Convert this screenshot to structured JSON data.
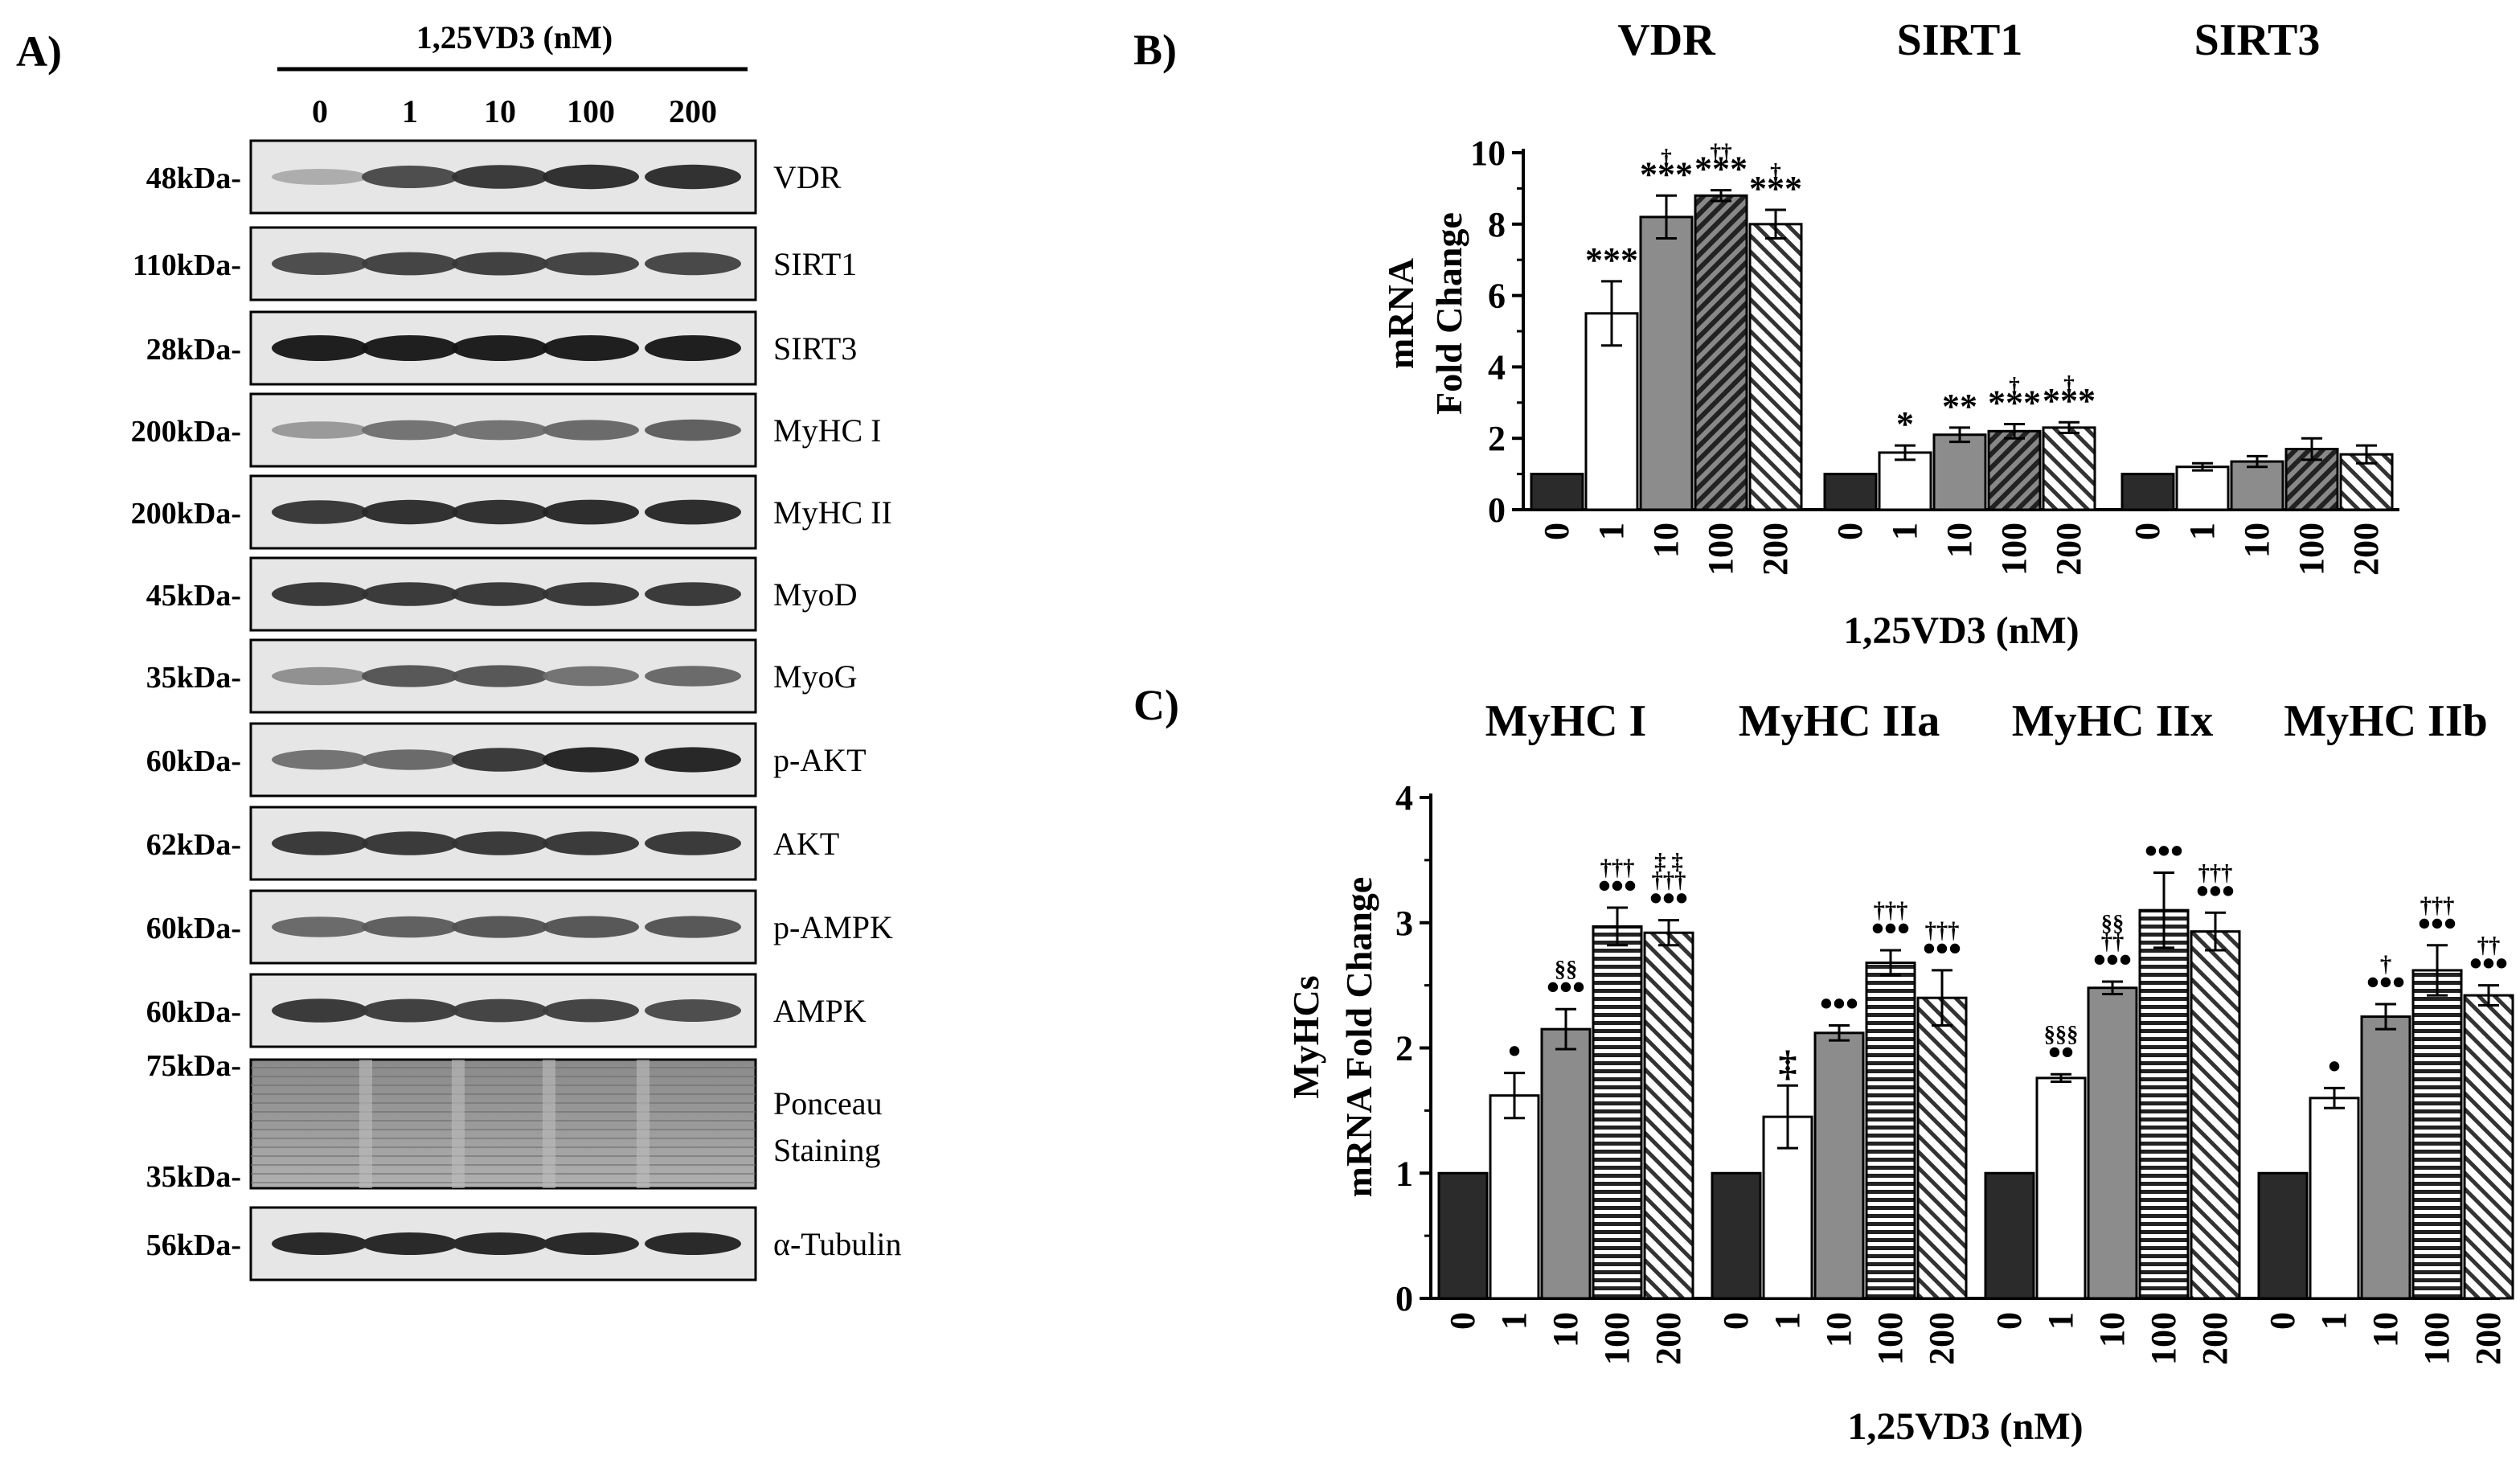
{
  "panel_labels": {
    "a": "A)",
    "b": "B)",
    "c": "C)"
  },
  "blot": {
    "treatment_label": "1,25VD3 (nM)",
    "lanes": [
      "0",
      "1",
      "10",
      "100",
      "200"
    ],
    "rows": [
      {
        "marker": "48kDa-",
        "protein": "VDR",
        "intensity": [
          0.25,
          0.75,
          0.85,
          0.9,
          0.9
        ]
      },
      {
        "marker": "110kDa-",
        "protein": "SIRT1",
        "intensity": [
          0.75,
          0.8,
          0.82,
          0.8,
          0.78
        ]
      },
      {
        "marker": "28kDa-",
        "protein": "SIRT3",
        "intensity": [
          1.0,
          1.0,
          1.0,
          1.0,
          1.0
        ]
      },
      {
        "marker": "200kDa-",
        "protein": "MyHC  I",
        "intensity": [
          0.35,
          0.55,
          0.55,
          0.6,
          0.65
        ]
      },
      {
        "marker": "200kDa-",
        "protein": "MyHC  II",
        "intensity": [
          0.85,
          0.9,
          0.9,
          0.92,
          0.92
        ]
      },
      {
        "marker": "45kDa-",
        "protein": "MyoD",
        "intensity": [
          0.85,
          0.85,
          0.85,
          0.85,
          0.85
        ]
      },
      {
        "marker": "35kDa-",
        "protein": "MyoG",
        "intensity": [
          0.4,
          0.7,
          0.7,
          0.55,
          0.6
        ]
      },
      {
        "marker": "60kDa-",
        "protein": "p-AKT",
        "intensity": [
          0.55,
          0.6,
          0.85,
          0.95,
          0.95
        ]
      },
      {
        "marker": "62kDa-",
        "protein": "AKT",
        "intensity": [
          0.85,
          0.85,
          0.85,
          0.85,
          0.85
        ]
      },
      {
        "marker": "60kDa-",
        "protein": "p-AMPK",
        "intensity": [
          0.6,
          0.65,
          0.7,
          0.7,
          0.7
        ]
      },
      {
        "marker": "60kDa-",
        "protein": "AMPK",
        "intensity": [
          0.85,
          0.82,
          0.8,
          0.8,
          0.75
        ]
      }
    ],
    "ponceau": {
      "marker_top": "75kDa-",
      "marker_bottom": "35kDa-",
      "label_line1": "Ponceau",
      "label_line2": "Staining"
    },
    "loading": {
      "marker": "56kDa-",
      "protein": "α-Tubulin"
    }
  },
  "chart_data": [
    {
      "type": "bar",
      "panel": "B)",
      "ylabel_line1": "mRNA",
      "ylabel_line2": "Fold Change",
      "xlabel": "1,25VD3 (nM)",
      "ylim": [
        0,
        10
      ],
      "yticks": [
        0,
        2,
        4,
        6,
        8,
        10
      ],
      "categories": [
        "0",
        "1",
        "10",
        "100",
        "200"
      ],
      "groups": [
        {
          "name": "VDR",
          "values": [
            1.0,
            5.5,
            8.2,
            8.8,
            8.0
          ],
          "errors": [
            0,
            0.9,
            0.6,
            0.15,
            0.4
          ],
          "annotations": [
            [
              "",
              ""
            ],
            [
              "***",
              ""
            ],
            [
              "***",
              "†"
            ],
            [
              "***",
              "††"
            ],
            [
              "***",
              "†"
            ]
          ]
        },
        {
          "name": "SIRT1",
          "values": [
            1.0,
            1.6,
            2.1,
            2.2,
            2.3
          ],
          "errors": [
            0,
            0.2,
            0.2,
            0.2,
            0.15
          ],
          "annotations": [
            [
              "",
              ""
            ],
            [
              "*",
              ""
            ],
            [
              "**",
              ""
            ],
            [
              "***",
              "†"
            ],
            [
              "***",
              "†"
            ]
          ]
        },
        {
          "name": "SIRT3",
          "values": [
            1.0,
            1.2,
            1.35,
            1.7,
            1.55
          ],
          "errors": [
            0,
            0.1,
            0.15,
            0.3,
            0.25
          ],
          "annotations": [
            [
              "",
              ""
            ],
            [
              "",
              ""
            ],
            [
              "",
              ""
            ],
            [
              "",
              ""
            ],
            [
              "",
              ""
            ]
          ]
        }
      ]
    },
    {
      "type": "bar",
      "panel": "C)",
      "ylabel_line1": "MyHCs",
      "ylabel_line2": "mRNA Fold Change",
      "xlabel": "1,25VD3 (nM)",
      "ylim": [
        0,
        4
      ],
      "yticks": [
        0,
        1,
        2,
        3,
        4
      ],
      "categories": [
        "0",
        "1",
        "10",
        "100",
        "200"
      ],
      "groups": [
        {
          "name": "MyHC I",
          "values": [
            1.0,
            1.62,
            2.15,
            2.97,
            2.92
          ],
          "errors": [
            0,
            0.18,
            0.16,
            0.15,
            0.1
          ],
          "annotations": [
            [
              "",
              "",
              ""
            ],
            [
              "•",
              "",
              ""
            ],
            [
              "•••",
              "§§",
              ""
            ],
            [
              "•••",
              "†††",
              ""
            ],
            [
              "•••",
              "†††",
              "‡ ‡"
            ]
          ]
        },
        {
          "name": "MyHC IIa",
          "values": [
            1.0,
            1.45,
            2.12,
            2.68,
            2.4
          ],
          "errors": [
            0,
            0.25,
            0.06,
            0.1,
            0.22
          ],
          "annotations": [
            [
              "",
              "",
              ""
            ],
            [
              "‡",
              "",
              ""
            ],
            [
              "•••",
              "",
              ""
            ],
            [
              "•••",
              "†††",
              ""
            ],
            [
              "•••",
              "†††",
              ""
            ]
          ]
        },
        {
          "name": "MyHC IIx",
          "values": [
            1.0,
            1.76,
            2.48,
            3.1,
            2.93
          ],
          "errors": [
            0,
            0.03,
            0.05,
            0.3,
            0.15
          ],
          "annotations": [
            [
              "",
              "",
              ""
            ],
            [
              "••",
              "§§§",
              ""
            ],
            [
              "•••",
              "††",
              "§§"
            ],
            [
              "•••",
              "",
              ""
            ],
            [
              "•••",
              "†††",
              ""
            ]
          ]
        },
        {
          "name": "MyHC IIb",
          "values": [
            1.0,
            1.6,
            2.25,
            2.62,
            2.42
          ],
          "errors": [
            0,
            0.08,
            0.1,
            0.2,
            0.08
          ],
          "annotations": [
            [
              "",
              "",
              ""
            ],
            [
              "•",
              "",
              ""
            ],
            [
              "•••",
              "†",
              ""
            ],
            [
              "•••",
              "†††",
              ""
            ],
            [
              "•••",
              "††",
              ""
            ]
          ]
        }
      ]
    }
  ]
}
